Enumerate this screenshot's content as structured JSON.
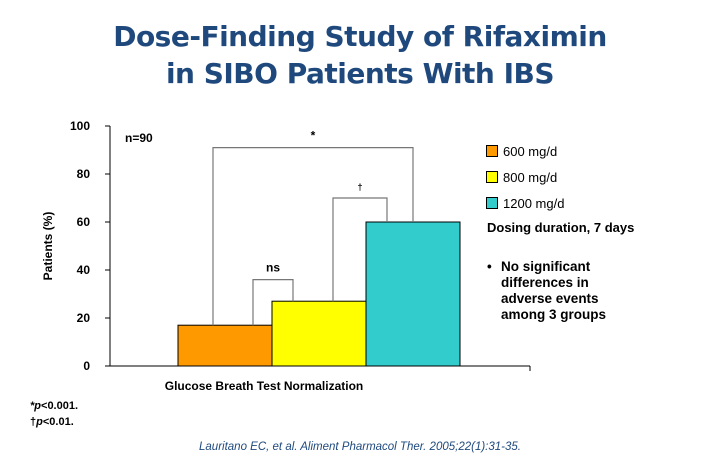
{
  "title": {
    "line1": "Dose-Finding Study of Rifaximin",
    "line2": "in SIBO Patients With IBS"
  },
  "chart_data": {
    "type": "bar",
    "xlabel": "Glucose Breath Test Normalization",
    "ylabel": "Patients (%)",
    "ylim": [
      0,
      100
    ],
    "yticks": [
      "0",
      "20",
      "40",
      "60",
      "80",
      "100"
    ],
    "series": [
      {
        "name": "600 mg/d",
        "values": [
          17
        ],
        "color": "#FF9900"
      },
      {
        "name": "800 mg/d",
        "values": [
          27
        ],
        "color": "#FFFF00"
      },
      {
        "name": "1200 mg/d",
        "values": [
          60
        ],
        "color": "#33CCCC"
      }
    ],
    "annotations": {
      "n": "n=90",
      "comparisons": [
        {
          "between": [
            "600 mg/d",
            "1200 mg/d"
          ],
          "label": "*",
          "level": 91
        },
        {
          "between": [
            "800 mg/d",
            "1200 mg/d"
          ],
          "label": "†",
          "level": 70
        },
        {
          "between": [
            "600 mg/d",
            "800 mg/d"
          ],
          "label": "ns",
          "level": 36
        }
      ]
    },
    "legend_position": "right"
  },
  "sidebar": {
    "duration": "Dosing duration, 7 days",
    "bullet": "No significant differences in adverse events among 3 groups"
  },
  "footnotes": {
    "f1_mark": "*",
    "f1_p": "p",
    "f1_text": "<0.001.",
    "f2_mark": "†",
    "f2_p": "p",
    "f2_text": "<0.01."
  },
  "citation": "Lauritano EC, et al. Aliment Pharmacol Ther. 2005;22(1):31-35."
}
